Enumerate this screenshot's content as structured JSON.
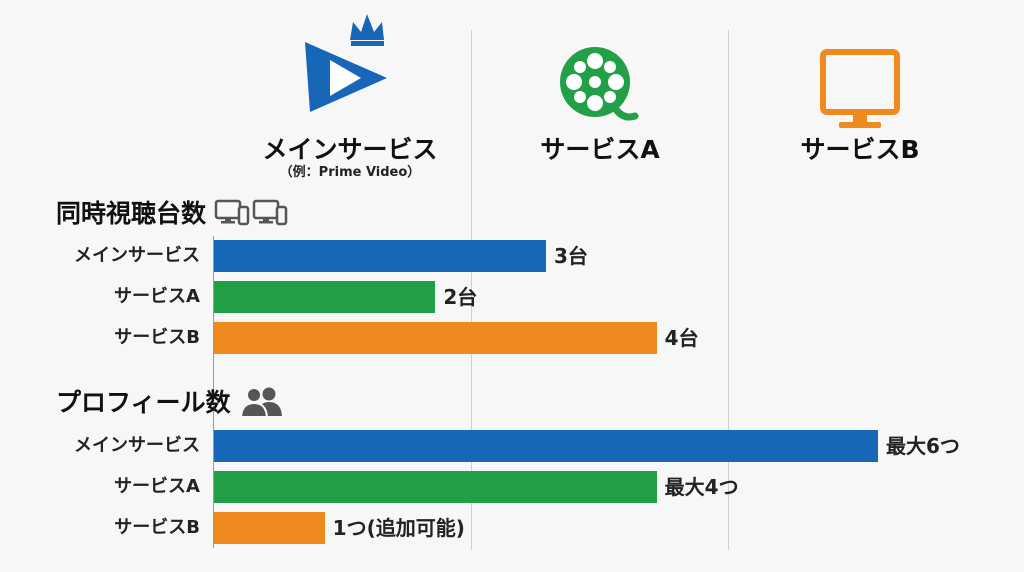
{
  "services": [
    {
      "name": "メインサービス",
      "note": "（例：Prime Video）",
      "icon": "play-crown-icon",
      "color": "#1766b8"
    },
    {
      "name": "サービスA",
      "icon": "film-reel-icon",
      "color": "#22a048"
    },
    {
      "name": "サービスB",
      "icon": "tv-icon",
      "color": "#ef8a1e"
    }
  ],
  "chart_data": [
    {
      "type": "bar",
      "orientation": "horizontal",
      "title": "同時視聴台数",
      "title_icon": "devices-icon",
      "categories": [
        "メインサービス",
        "サービスA",
        "サービスB"
      ],
      "values": [
        3,
        2,
        4
      ],
      "value_labels": [
        "3台",
        "2台",
        "4台"
      ],
      "colors": [
        "#1766b8",
        "#22a048",
        "#ef8a1e"
      ],
      "xlim": [
        0,
        6
      ],
      "grid": true
    },
    {
      "type": "bar",
      "orientation": "horizontal",
      "title": "プロフィール数",
      "title_icon": "users-icon",
      "categories": [
        "メインサービス",
        "サービスA",
        "サービスB"
      ],
      "values": [
        6,
        4,
        1
      ],
      "value_labels": [
        "最大6つ",
        "最大4つ",
        "1つ(追加可能)"
      ],
      "colors": [
        "#1766b8",
        "#22a048",
        "#ef8a1e"
      ],
      "xlim": [
        0,
        6.2
      ],
      "grid": true
    }
  ]
}
